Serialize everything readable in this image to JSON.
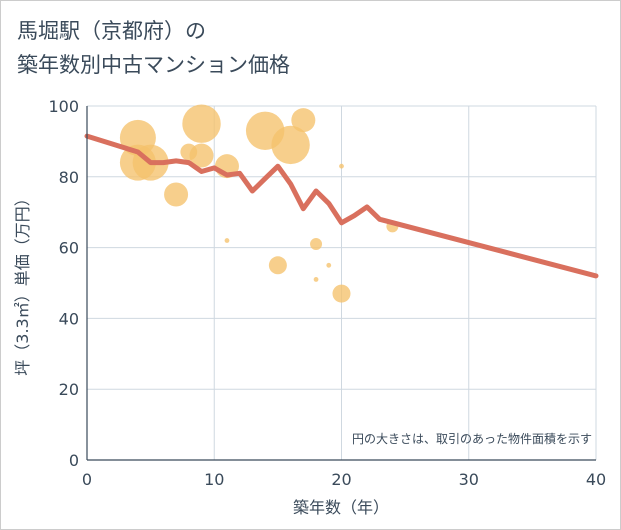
{
  "title_line1": "馬堀駅（京都府）の",
  "title_line2": "築年数別中古マンション価格",
  "note": "円の大きさは、取引のあった物件面積を示す",
  "colors": {
    "bubble": "#f5c26b",
    "line": "#d9705e",
    "grid": "#cfd8e0",
    "axis": "#3a4a5a"
  },
  "chart_data": {
    "type": "scatter",
    "xlabel": "築年数（年）",
    "ylabel": "坪（3.3㎡）単価（万円）",
    "xlim": [
      0,
      40
    ],
    "ylim": [
      0,
      100
    ],
    "xticks": [
      0,
      10,
      20,
      30,
      40
    ],
    "yticks": [
      0,
      20,
      40,
      60,
      80,
      100
    ],
    "grid": true,
    "bubbles": [
      {
        "x": 4,
        "y": 91,
        "size": 3
      },
      {
        "x": 4,
        "y": 84,
        "size": 3
      },
      {
        "x": 5,
        "y": 84,
        "size": 3
      },
      {
        "x": 7,
        "y": 75,
        "size": 2
      },
      {
        "x": 8,
        "y": 87,
        "size": 1.4
      },
      {
        "x": 9,
        "y": 95,
        "size": 3.2
      },
      {
        "x": 9,
        "y": 86,
        "size": 2
      },
      {
        "x": 11,
        "y": 83,
        "size": 2
      },
      {
        "x": 11,
        "y": 62,
        "size": 0.4
      },
      {
        "x": 14,
        "y": 93,
        "size": 3.2
      },
      {
        "x": 15,
        "y": 55,
        "size": 1.5
      },
      {
        "x": 16,
        "y": 89,
        "size": 3.2
      },
      {
        "x": 17,
        "y": 96,
        "size": 2
      },
      {
        "x": 18,
        "y": 61,
        "size": 1
      },
      {
        "x": 18,
        "y": 51,
        "size": 0.4
      },
      {
        "x": 19,
        "y": 55,
        "size": 0.4
      },
      {
        "x": 20,
        "y": 83,
        "size": 0.4
      },
      {
        "x": 20,
        "y": 47,
        "size": 1.5
      },
      {
        "x": 24,
        "y": 66,
        "size": 1
      }
    ],
    "trend": {
      "x": [
        0,
        4,
        5,
        6,
        7,
        8,
        9,
        10,
        11,
        12,
        13,
        14,
        15,
        16,
        17,
        18,
        19,
        20,
        21,
        22,
        23,
        40
      ],
      "y": [
        91.5,
        87,
        84,
        84,
        84.5,
        84,
        81.5,
        82.5,
        80.5,
        81,
        76,
        79.5,
        83,
        78,
        71,
        76,
        72.5,
        67,
        69,
        71.5,
        68,
        52
      ]
    }
  }
}
